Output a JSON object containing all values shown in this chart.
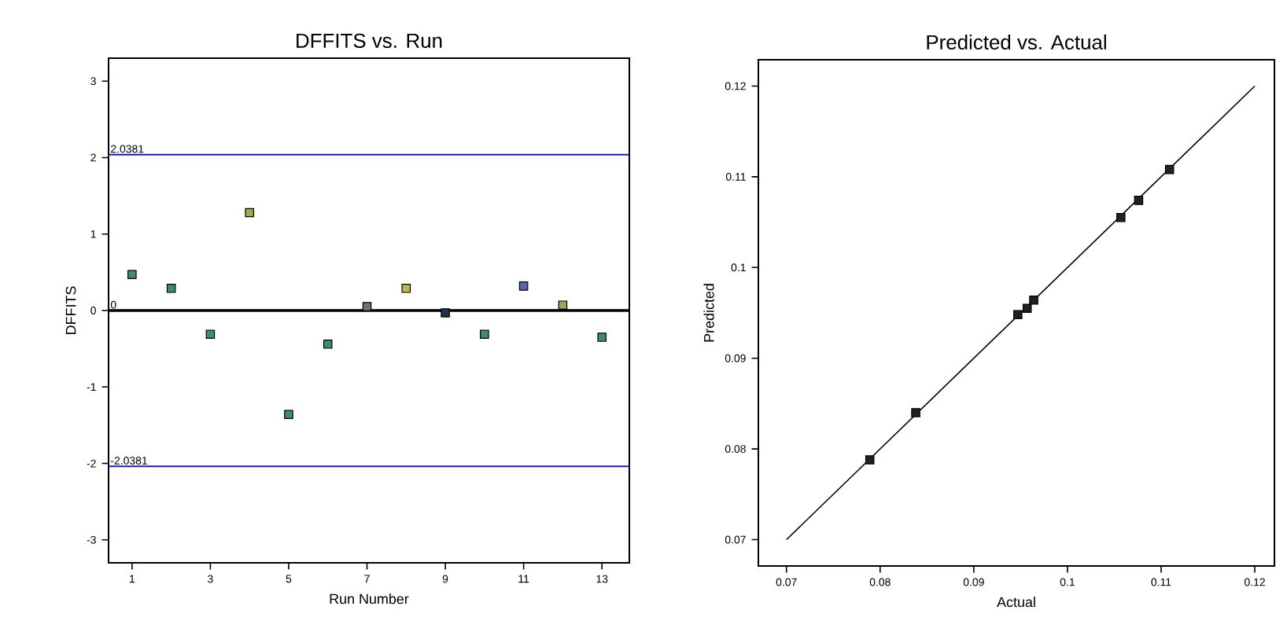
{
  "chart_data": [
    {
      "type": "scatter",
      "title": "DFFITS vs. Run",
      "xlabel": "Run Number",
      "ylabel": "DFFITS",
      "marker": "square",
      "x": [
        1,
        2,
        3,
        4,
        5,
        6,
        7,
        8,
        9,
        10,
        11,
        12,
        13
      ],
      "values": [
        0.47,
        0.29,
        -0.31,
        1.28,
        -1.36,
        -0.44,
        0.05,
        0.29,
        -0.03,
        -0.31,
        0.32,
        0.07,
        -0.35
      ],
      "colors": [
        "#3f8a7a",
        "#3f8a7a",
        "#3f8a7a",
        "#9aae4a",
        "#3f8a7a",
        "#3f8a7a",
        "#707070",
        "#c2b848",
        "#203050",
        "#3f8a7a",
        "#5a63a8",
        "#a0a060",
        "#3f8a7a"
      ],
      "xlim": [
        0.4,
        13.7
      ],
      "ylim": [
        -3.3,
        3.3
      ],
      "xticks": [
        1,
        3,
        5,
        7,
        9,
        11,
        13
      ],
      "yticks": [
        -3,
        -2,
        -1,
        0,
        1,
        2,
        3
      ],
      "ref_lines": [
        {
          "axis": "y",
          "value": 2.0381,
          "label": "2.0381",
          "color": "#1a1ac8"
        },
        {
          "axis": "y",
          "value": 0,
          "label": "0",
          "color": "#000000"
        },
        {
          "axis": "y",
          "value": -2.0381,
          "label": "-2.0381",
          "color": "#1a1ac8"
        }
      ]
    },
    {
      "type": "scatter",
      "title": "Predicted vs. Actual",
      "xlabel": "Actual",
      "ylabel": "Predicted",
      "xlim": [
        0.067,
        0.1221
      ],
      "ylim": [
        0.0671,
        0.1229
      ],
      "xticks": [
        0.07,
        0.08,
        0.09,
        0.1,
        0.11,
        0.12
      ],
      "yticks": [
        0.07,
        0.08,
        0.09,
        0.1,
        0.11,
        0.12
      ],
      "series": [
        {
          "type": "scatter",
          "marker": "square",
          "color": "#202020",
          "x": [
            0.0789,
            0.0838,
            0.0947,
            0.0957,
            0.0964,
            0.1057,
            0.1076,
            0.1109
          ],
          "values": [
            0.0788,
            0.084,
            0.0948,
            0.0955,
            0.0964,
            0.1055,
            0.1074,
            0.1108
          ]
        },
        {
          "type": "line",
          "marker": "none",
          "color": "#000000",
          "x": [
            0.07,
            0.12
          ],
          "values": [
            0.07,
            0.12
          ]
        }
      ]
    }
  ]
}
